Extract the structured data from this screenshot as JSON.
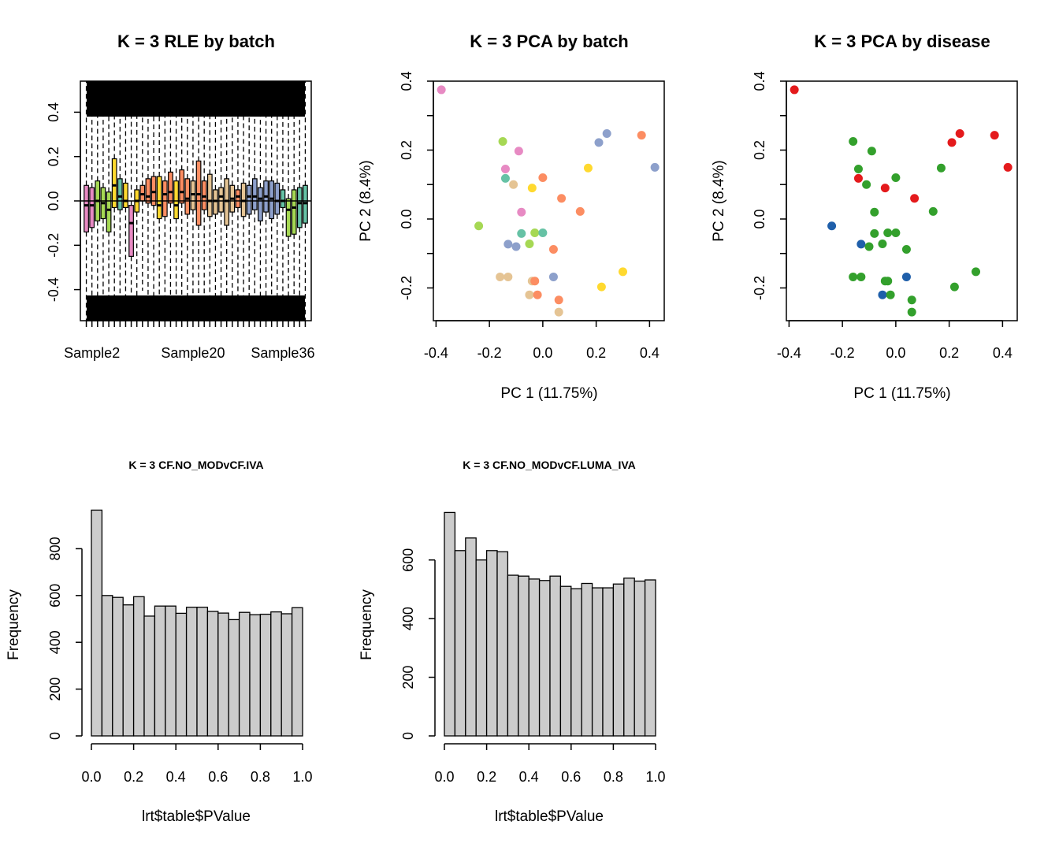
{
  "chart_data": [
    {
      "id": "rle",
      "type": "box",
      "title": "K = 3 RLE by batch",
      "xlabel": "",
      "ylabel": "",
      "ylim": [
        -0.54,
        0.54
      ],
      "yticks": [
        -0.4,
        -0.2,
        0.0,
        0.2,
        0.4
      ],
      "ytick_labels": [
        "-0.4",
        "-0.2",
        "0.0",
        "0.2",
        "0.4"
      ],
      "xtick_labels": [
        {
          "index": 1,
          "label": "Sample2"
        },
        {
          "index": 19,
          "label": "Sample20"
        },
        {
          "index": 35,
          "label": "Sample36"
        }
      ],
      "hline": 0,
      "boxes": [
        {
          "c": "#E78AC3",
          "q1": -0.14,
          "med": -0.02,
          "q3": 0.07
        },
        {
          "c": "#E78AC3",
          "q1": -0.12,
          "med": -0.02,
          "q3": 0.06
        },
        {
          "c": "#A6D854",
          "q1": -0.09,
          "med": 0.0,
          "q3": 0.09
        },
        {
          "c": "#A6D854",
          "q1": -0.08,
          "med": -0.01,
          "q3": 0.06
        },
        {
          "c": "#A6D854",
          "q1": -0.14,
          "med": -0.04,
          "q3": 0.04
        },
        {
          "c": "#FFD92F",
          "q1": -0.03,
          "med": 0.07,
          "q3": 0.19
        },
        {
          "c": "#66C2A5",
          "q1": -0.04,
          "med": 0.02,
          "q3": 0.1
        },
        {
          "c": "#FFD92F",
          "q1": -0.03,
          "med": 0.0,
          "q3": 0.08
        },
        {
          "c": "#E78AC3",
          "q1": -0.25,
          "med": -0.1,
          "q3": -0.02
        },
        {
          "c": "#FFD92F",
          "q1": -0.05,
          "med": 0.0,
          "q3": 0.05
        },
        {
          "c": "#FC8D62",
          "q1": 0.0,
          "med": 0.03,
          "q3": 0.07
        },
        {
          "c": "#FC8D62",
          "q1": -0.01,
          "med": 0.02,
          "q3": 0.1
        },
        {
          "c": "#FC8D62",
          "q1": -0.02,
          "med": 0.04,
          "q3": 0.11
        },
        {
          "c": "#FFD92F",
          "q1": -0.08,
          "med": -0.02,
          "q3": 0.11
        },
        {
          "c": "#FC8D62",
          "q1": -0.07,
          "med": 0.03,
          "q3": 0.09
        },
        {
          "c": "#FC8D62",
          "q1": -0.01,
          "med": 0.04,
          "q3": 0.13
        },
        {
          "c": "#FFD92F",
          "q1": -0.08,
          "med": -0.02,
          "q3": 0.09
        },
        {
          "c": "#FC8D62",
          "q1": -0.01,
          "med": 0.04,
          "q3": 0.14
        },
        {
          "c": "#FC8D62",
          "q1": -0.06,
          "med": 0.01,
          "q3": 0.1
        },
        {
          "c": "#E5C494",
          "q1": -0.04,
          "med": 0.03,
          "q3": 0.09
        },
        {
          "c": "#FC8D62",
          "q1": -0.11,
          "med": 0.03,
          "q3": 0.18
        },
        {
          "c": "#FC8D62",
          "q1": -0.04,
          "med": 0.02,
          "q3": 0.09
        },
        {
          "c": "#E5C494",
          "q1": -0.07,
          "med": 0.0,
          "q3": 0.12
        },
        {
          "c": "#E5C494",
          "q1": -0.06,
          "med": 0.0,
          "q3": 0.05
        },
        {
          "c": "#E5C494",
          "q1": -0.05,
          "med": 0.02,
          "q3": 0.06
        },
        {
          "c": "#E5C494",
          "q1": -0.11,
          "med": 0.0,
          "q3": 0.1
        },
        {
          "c": "#E5C494",
          "q1": -0.05,
          "med": 0.01,
          "q3": 0.07
        },
        {
          "c": "#FC8D62",
          "q1": -0.03,
          "med": 0.02,
          "q3": 0.05
        },
        {
          "c": "#E5C494",
          "q1": -0.07,
          "med": 0.0,
          "q3": 0.08
        },
        {
          "c": "#8DA0CB",
          "q1": -0.06,
          "med": 0.02,
          "q3": 0.07
        },
        {
          "c": "#8DA0CB",
          "q1": -0.04,
          "med": 0.02,
          "q3": 0.1
        },
        {
          "c": "#8DA0CB",
          "q1": -0.09,
          "med": 0.01,
          "q3": 0.06
        },
        {
          "c": "#8DA0CB",
          "q1": -0.05,
          "med": 0.02,
          "q3": 0.09
        },
        {
          "c": "#8DA0CB",
          "q1": -0.08,
          "med": 0.01,
          "q3": 0.09
        },
        {
          "c": "#8DA0CB",
          "q1": -0.06,
          "med": 0.0,
          "q3": 0.08
        },
        {
          "c": "#66C2A5",
          "q1": -0.03,
          "med": 0.0,
          "q3": 0.05
        },
        {
          "c": "#A6D854",
          "q1": -0.16,
          "med": -0.04,
          "q3": 0.01
        },
        {
          "c": "#A6D854",
          "q1": -0.15,
          "med": -0.03,
          "q3": 0.05
        },
        {
          "c": "#66C2A5",
          "q1": -0.12,
          "med": -0.01,
          "q3": 0.06
        },
        {
          "c": "#66C2A5",
          "q1": -0.1,
          "med": -0.01,
          "q3": 0.07
        }
      ]
    },
    {
      "id": "pca_batch",
      "type": "scatter",
      "title": "K = 3 PCA by batch",
      "xlabel": "PC 1 (11.75%)",
      "ylabel": "PC 2 (8.4%)",
      "xlim": [
        -0.41,
        0.455
      ],
      "ylim": [
        -0.295,
        0.4
      ],
      "xticks": [
        -0.4,
        -0.2,
        0.0,
        0.2,
        0.4
      ],
      "xtick_labels": [
        "-0.4",
        "-0.2",
        "0.0",
        "0.2",
        "0.4"
      ],
      "yticks": [
        -0.2,
        0.0,
        0.2,
        0.4
      ],
      "ytick_labels": [
        "-0.2",
        "0.0",
        "0.2",
        "0.4"
      ],
      "points": [
        {
          "x": -0.38,
          "y": 0.375,
          "c": "#E78AC3"
        },
        {
          "x": -0.15,
          "y": 0.225,
          "c": "#A6D854"
        },
        {
          "x": -0.09,
          "y": 0.197,
          "c": "#E78AC3"
        },
        {
          "x": -0.14,
          "y": 0.145,
          "c": "#E78AC3"
        },
        {
          "x": -0.14,
          "y": 0.118,
          "c": "#66C2A5"
        },
        {
          "x": -0.11,
          "y": 0.1,
          "c": "#E5C494"
        },
        {
          "x": -0.04,
          "y": 0.09,
          "c": "#FFD92F"
        },
        {
          "x": 0.0,
          "y": 0.12,
          "c": "#FC8D62"
        },
        {
          "x": 0.07,
          "y": 0.06,
          "c": "#FC8D62"
        },
        {
          "x": 0.17,
          "y": 0.148,
          "c": "#FFD92F"
        },
        {
          "x": 0.21,
          "y": 0.222,
          "c": "#8DA0CB"
        },
        {
          "x": 0.24,
          "y": 0.248,
          "c": "#8DA0CB"
        },
        {
          "x": 0.37,
          "y": 0.243,
          "c": "#FC8D62"
        },
        {
          "x": 0.42,
          "y": 0.15,
          "c": "#8DA0CB"
        },
        {
          "x": -0.08,
          "y": 0.02,
          "c": "#E78AC3"
        },
        {
          "x": 0.14,
          "y": 0.022,
          "c": "#FC8D62"
        },
        {
          "x": -0.24,
          "y": -0.02,
          "c": "#A6D854"
        },
        {
          "x": -0.08,
          "y": -0.042,
          "c": "#66C2A5"
        },
        {
          "x": -0.03,
          "y": -0.04,
          "c": "#A6D854"
        },
        {
          "x": 0.0,
          "y": -0.04,
          "c": "#66C2A5"
        },
        {
          "x": -0.13,
          "y": -0.073,
          "c": "#8DA0CB"
        },
        {
          "x": -0.1,
          "y": -0.08,
          "c": "#8DA0CB"
        },
        {
          "x": -0.05,
          "y": -0.072,
          "c": "#A6D854"
        },
        {
          "x": 0.04,
          "y": -0.088,
          "c": "#FC8D62"
        },
        {
          "x": -0.16,
          "y": -0.168,
          "c": "#E5C494"
        },
        {
          "x": -0.13,
          "y": -0.168,
          "c": "#E5C494"
        },
        {
          "x": -0.04,
          "y": -0.18,
          "c": "#E5C494"
        },
        {
          "x": -0.03,
          "y": -0.18,
          "c": "#FC8D62"
        },
        {
          "x": 0.04,
          "y": -0.168,
          "c": "#8DA0CB"
        },
        {
          "x": 0.3,
          "y": -0.153,
          "c": "#FFD92F"
        },
        {
          "x": 0.22,
          "y": -0.197,
          "c": "#FFD92F"
        },
        {
          "x": -0.05,
          "y": -0.22,
          "c": "#E5C494"
        },
        {
          "x": -0.02,
          "y": -0.22,
          "c": "#FC8D62"
        },
        {
          "x": 0.06,
          "y": -0.235,
          "c": "#FC8D62"
        },
        {
          "x": 0.06,
          "y": -0.27,
          "c": "#E5C494"
        }
      ]
    },
    {
      "id": "pca_disease",
      "type": "scatter",
      "title": "K = 3 PCA by disease",
      "xlabel": "PC 1 (11.75%)",
      "ylabel": "PC 2 (8.4%)",
      "xlim": [
        -0.41,
        0.455
      ],
      "ylim": [
        -0.295,
        0.4
      ],
      "xticks": [
        -0.4,
        -0.2,
        0.0,
        0.2,
        0.4
      ],
      "xtick_labels": [
        "-0.4",
        "-0.2",
        "0.0",
        "0.2",
        "0.4"
      ],
      "yticks": [
        -0.2,
        0.0,
        0.2,
        0.4
      ],
      "ytick_labels": [
        "-0.2",
        "0.0",
        "0.2",
        "0.4"
      ],
      "points": [
        {
          "x": -0.38,
          "y": 0.375,
          "c": "#E41A1C"
        },
        {
          "x": -0.16,
          "y": 0.225,
          "c": "#33A02C"
        },
        {
          "x": -0.09,
          "y": 0.197,
          "c": "#33A02C"
        },
        {
          "x": -0.14,
          "y": 0.145,
          "c": "#33A02C"
        },
        {
          "x": -0.14,
          "y": 0.118,
          "c": "#E41A1C"
        },
        {
          "x": -0.11,
          "y": 0.1,
          "c": "#33A02C"
        },
        {
          "x": -0.04,
          "y": 0.09,
          "c": "#E41A1C"
        },
        {
          "x": 0.0,
          "y": 0.12,
          "c": "#33A02C"
        },
        {
          "x": 0.07,
          "y": 0.06,
          "c": "#E41A1C"
        },
        {
          "x": 0.17,
          "y": 0.148,
          "c": "#33A02C"
        },
        {
          "x": 0.21,
          "y": 0.222,
          "c": "#E41A1C"
        },
        {
          "x": 0.24,
          "y": 0.248,
          "c": "#E41A1C"
        },
        {
          "x": 0.37,
          "y": 0.243,
          "c": "#E41A1C"
        },
        {
          "x": 0.42,
          "y": 0.15,
          "c": "#E41A1C"
        },
        {
          "x": -0.08,
          "y": 0.02,
          "c": "#33A02C"
        },
        {
          "x": 0.14,
          "y": 0.022,
          "c": "#33A02C"
        },
        {
          "x": -0.24,
          "y": -0.02,
          "c": "#1F5FAA"
        },
        {
          "x": -0.08,
          "y": -0.042,
          "c": "#33A02C"
        },
        {
          "x": -0.03,
          "y": -0.04,
          "c": "#33A02C"
        },
        {
          "x": 0.0,
          "y": -0.04,
          "c": "#33A02C"
        },
        {
          "x": -0.13,
          "y": -0.073,
          "c": "#1F5FAA"
        },
        {
          "x": -0.1,
          "y": -0.08,
          "c": "#33A02C"
        },
        {
          "x": -0.05,
          "y": -0.072,
          "c": "#33A02C"
        },
        {
          "x": 0.04,
          "y": -0.088,
          "c": "#33A02C"
        },
        {
          "x": -0.16,
          "y": -0.168,
          "c": "#33A02C"
        },
        {
          "x": -0.13,
          "y": -0.168,
          "c": "#33A02C"
        },
        {
          "x": -0.04,
          "y": -0.18,
          "c": "#33A02C"
        },
        {
          "x": -0.03,
          "y": -0.18,
          "c": "#33A02C"
        },
        {
          "x": 0.04,
          "y": -0.168,
          "c": "#1F5FAA"
        },
        {
          "x": 0.3,
          "y": -0.153,
          "c": "#33A02C"
        },
        {
          "x": 0.22,
          "y": -0.197,
          "c": "#33A02C"
        },
        {
          "x": -0.05,
          "y": -0.22,
          "c": "#1F5FAA"
        },
        {
          "x": -0.02,
          "y": -0.22,
          "c": "#33A02C"
        },
        {
          "x": 0.06,
          "y": -0.235,
          "c": "#33A02C"
        },
        {
          "x": 0.06,
          "y": -0.27,
          "c": "#33A02C"
        }
      ]
    },
    {
      "id": "hist_iva",
      "type": "bar",
      "title": "K = 3 CF.NO_MODvCF.IVA",
      "xlabel": "lrt$table$PValue",
      "ylabel": "Frequency",
      "ylim": [
        0,
        990
      ],
      "yticks": [
        0,
        200,
        400,
        600,
        800
      ],
      "ytick_labels": [
        "0",
        "200",
        "400",
        "600",
        "800"
      ],
      "xticks": [
        0,
        0.2,
        0.4,
        0.6,
        0.8,
        1.0
      ],
      "xtick_labels": [
        "0.0",
        "0.2",
        "0.4",
        "0.6",
        "0.8",
        "1.0"
      ],
      "bin_edges_start": 0,
      "bin_width": 0.05,
      "values": [
        965,
        600,
        592,
        560,
        595,
        512,
        555,
        555,
        524,
        550,
        550,
        532,
        525,
        497,
        528,
        518,
        520,
        530,
        522,
        548
      ]
    },
    {
      "id": "hist_luma",
      "type": "bar",
      "title": "K = 3 CF.NO_MODvCF.LUMA_IVA",
      "xlabel": "lrt$table$PValue",
      "ylabel": "Frequency",
      "ylim": [
        0,
        790
      ],
      "yticks": [
        0,
        200,
        400,
        600
      ],
      "ytick_labels": [
        "0",
        "200",
        "400",
        "600"
      ],
      "xticks": [
        0,
        0.2,
        0.4,
        0.6,
        0.8,
        1.0
      ],
      "xtick_labels": [
        "0.0",
        "0.2",
        "0.4",
        "0.6",
        "0.8",
        "1.0"
      ],
      "bin_edges_start": 0,
      "bin_width": 0.05,
      "values": [
        762,
        632,
        675,
        600,
        632,
        628,
        548,
        545,
        535,
        530,
        545,
        510,
        502,
        520,
        505,
        505,
        518,
        538,
        528,
        532
      ]
    }
  ]
}
